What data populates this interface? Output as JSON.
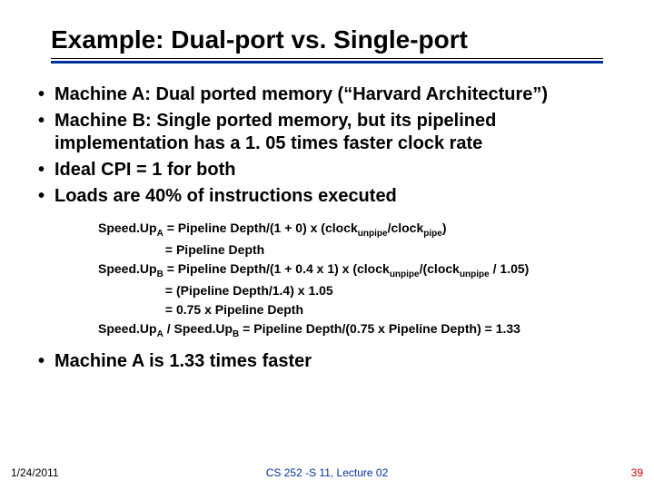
{
  "title": "Example: Dual-port vs. Single-port",
  "colors": {
    "underline_accent": "#003399",
    "footer_center": "#003399",
    "footer_page": "#cc0000"
  },
  "bullets_top": [
    "Machine A: Dual ported memory (“Harvard Architecture”)",
    "Machine B: Single ported memory, but its pipelined implementation has a 1. 05 times faster clock rate",
    "Ideal CPI = 1 for both",
    "Loads are 40% of instructions executed"
  ],
  "equations": {
    "l1_pre": "Speed.Up",
    "l1_sub": "A",
    "l1_post": " = Pipeline Depth/(1 + 0) x (clock",
    "l1_sub2": "unpipe",
    "l1_mid": "/clock",
    "l1_sub3": "pipe",
    "l1_end": ")",
    "l2_indent": "                   = Pipeline Depth",
    "l3_pre": "Speed.Up",
    "l3_sub": "B",
    "l3_post": " = Pipeline Depth/(1 + 0.4 x 1) x (clock",
    "l3_sub2": "unpipe",
    "l3_mid": "/(clock",
    "l3_sub3": "unpipe",
    "l3_end": " / 1.05)",
    "l4_indent": "                   = (Pipeline Depth/1.4) x  1.05",
    "l5_indent": "                   = 0.75 x Pipeline Depth",
    "l6_pre": "Speed.Up",
    "l6_subA": "A",
    "l6_mid1": " / Speed.Up",
    "l6_subB": "B",
    "l6_post": " = Pipeline Depth/(0.75 x Pipeline Depth) = 1.33"
  },
  "bullets_bottom": [
    "Machine A is 1.33 times faster"
  ],
  "footer": {
    "date": "1/24/2011",
    "center": "CS 252 -S 11, Lecture 02",
    "page": "39"
  }
}
